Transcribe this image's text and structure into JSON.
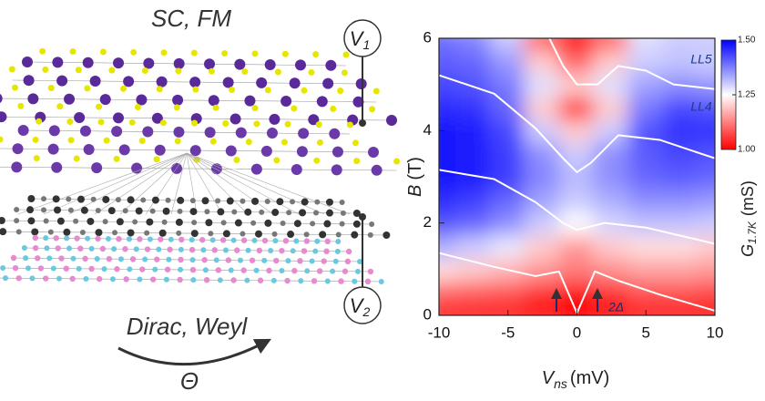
{
  "illustration": {
    "top_label": "SC, FM",
    "bottom_label": "Dirac, Weyl",
    "angle_label": "Θ",
    "v1": {
      "symbol": "V",
      "subscript": "1"
    },
    "v2": {
      "symbol": "V",
      "subscript": "2"
    }
  },
  "chart_data": {
    "type": "heatmap",
    "x": [
      -10,
      -7.5,
      -5,
      -2.5,
      0,
      2.5,
      5,
      7.5,
      10
    ],
    "y": [
      0,
      0.5,
      1,
      1.5,
      2,
      2.5,
      3,
      3.5,
      4,
      4.5,
      5,
      5.5,
      6
    ],
    "z": [
      [
        1.03,
        1.03,
        1.03,
        1.02,
        1.0,
        1.02,
        1.03,
        1.03,
        1.03
      ],
      [
        1.1,
        1.09,
        1.08,
        1.05,
        1.02,
        1.05,
        1.08,
        1.08,
        1.07
      ],
      [
        1.22,
        1.2,
        1.18,
        1.15,
        1.12,
        1.14,
        1.16,
        1.16,
        1.15
      ],
      [
        1.33,
        1.3,
        1.27,
        1.2,
        1.15,
        1.2,
        1.22,
        1.22,
        1.2
      ],
      [
        1.42,
        1.4,
        1.36,
        1.3,
        1.25,
        1.29,
        1.31,
        1.31,
        1.3
      ],
      [
        1.46,
        1.44,
        1.4,
        1.34,
        1.3,
        1.33,
        1.36,
        1.36,
        1.35
      ],
      [
        1.48,
        1.47,
        1.44,
        1.37,
        1.32,
        1.36,
        1.4,
        1.41,
        1.4
      ],
      [
        1.48,
        1.47,
        1.44,
        1.36,
        1.3,
        1.36,
        1.41,
        1.43,
        1.42
      ],
      [
        1.48,
        1.47,
        1.43,
        1.3,
        1.2,
        1.3,
        1.42,
        1.45,
        1.45
      ],
      [
        1.46,
        1.45,
        1.4,
        1.2,
        1.05,
        1.2,
        1.38,
        1.43,
        1.42
      ],
      [
        1.43,
        1.42,
        1.38,
        1.28,
        1.2,
        1.28,
        1.34,
        1.36,
        1.35
      ],
      [
        1.41,
        1.4,
        1.35,
        1.2,
        1.1,
        1.2,
        1.3,
        1.31,
        1.3
      ],
      [
        1.39,
        1.37,
        1.3,
        1.1,
        1.0,
        1.1,
        1.28,
        1.3,
        1.3
      ]
    ],
    "curves": [
      {
        "x": [
          -10,
          -6,
          -3,
          -1.3,
          0,
          1.3,
          3,
          6,
          10
        ],
        "y": [
          1.35,
          1.05,
          0.85,
          0.95,
          0.05,
          0.95,
          0.75,
          0.45,
          0.1
        ]
      },
      {
        "x": [
          -10,
          -6,
          -3,
          -1,
          0,
          2,
          5,
          10
        ],
        "y": [
          3.15,
          2.95,
          2.45,
          2.0,
          1.85,
          2.0,
          1.9,
          1.55
        ]
      },
      {
        "x": [
          -10,
          -6,
          -3,
          -1,
          0,
          1,
          3,
          6,
          10
        ],
        "y": [
          5.2,
          4.8,
          4.05,
          3.4,
          3.1,
          3.3,
          3.9,
          3.8,
          3.4
        ]
      },
      {
        "x": [
          -2,
          -1,
          0,
          1.5,
          3,
          5,
          7,
          10
        ],
        "y": [
          6,
          5.4,
          5.0,
          5.0,
          5.4,
          5.3,
          5.0,
          4.9
        ]
      }
    ],
    "xlim": [
      -10,
      10
    ],
    "ylim": [
      0,
      6
    ],
    "xticks": [
      -10,
      -5,
      0,
      5,
      10
    ],
    "yticks": [
      0,
      2,
      4,
      6
    ],
    "xlabel": {
      "symbol": "V",
      "subscript": "ns",
      "unit": "(mV)"
    },
    "ylabel": {
      "symbol": "B",
      "unit": "(T)"
    },
    "colorbar": {
      "symbol": "G",
      "subscript": "1.7K",
      "unit": "(mS)",
      "clim": [
        1.0,
        1.5
      ],
      "ticks": [
        {
          "value": 1.0,
          "label": "1.00"
        },
        {
          "value": 1.25,
          "label": "1.25"
        },
        {
          "value": 1.5,
          "label": "1.50"
        }
      ]
    },
    "colormap": [
      "#ff0000",
      "#ffffff",
      "#0000ff"
    ],
    "annotations": [
      "LL5",
      "LL4",
      "2Δ"
    ]
  }
}
